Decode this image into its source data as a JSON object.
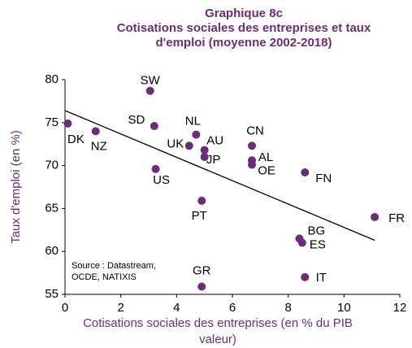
{
  "chart_data": {
    "type": "scatter",
    "title": "Graphique 8c",
    "subtitle": [
      "Cotisations sociales des entreprises et taux",
      "d'emploi (moyenne 2002-2018)"
    ],
    "x_label": [
      "Cotisations sociales des entreprises (en % du PIB",
      "valeur)"
    ],
    "y_label": "Taux d'emploi (en %)",
    "annotation": [
      "Source : Datastream,",
      "OCDE, NATIXIS"
    ],
    "point_labels": [
      "DK",
      "NZ",
      "SW",
      "SD",
      "US",
      "UK",
      "NL",
      "AU",
      "JP",
      "PT",
      "GR",
      "CN",
      "AL",
      "OE",
      "FN",
      "BG",
      "ES",
      "IT",
      "FR"
    ],
    "x": [
      0.1,
      1.1,
      3.05,
      3.2,
      3.25,
      4.45,
      4.7,
      5.0,
      5.0,
      4.9,
      4.9,
      6.7,
      6.7,
      6.7,
      8.6,
      8.4,
      8.5,
      8.6,
      11.1
    ],
    "values": [
      74.9,
      74.0,
      78.7,
      74.6,
      69.6,
      72.3,
      73.6,
      71.8,
      71.0,
      65.9,
      55.9,
      72.3,
      70.6,
      70.1,
      69.2,
      61.5,
      61.0,
      57.0,
      64.0
    ],
    "color": "#6b2c7a",
    "trendline": {
      "x": [
        0,
        11.1
      ],
      "y": [
        76.4,
        61.3
      ],
      "color": "#000000"
    },
    "xlim": [
      0,
      12
    ],
    "xticks": [
      0,
      2,
      4,
      6,
      8,
      10,
      12
    ],
    "ylim": [
      55,
      80
    ],
    "yticks": [
      55,
      60,
      65,
      70,
      75,
      80
    ],
    "grid": false
  }
}
